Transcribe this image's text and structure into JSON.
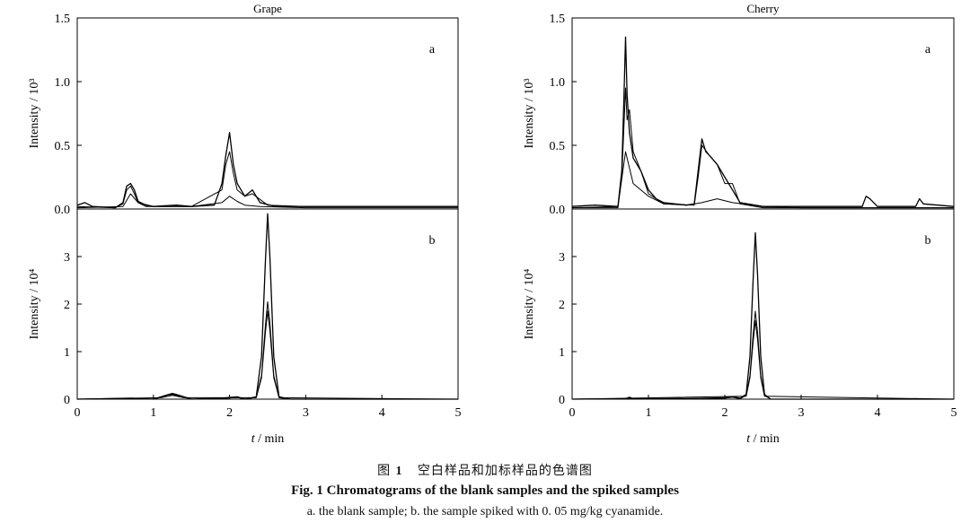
{
  "chart_data": [
    {
      "type": "line",
      "title": "Grape",
      "panels": [
        {
          "label": "a",
          "ylabel": "Intensity / 10³",
          "ylim": [
            0,
            1.5
          ],
          "yticks": [
            "0.0",
            "0.5",
            "1.0",
            "1.5"
          ],
          "xlim": [
            0,
            5
          ],
          "series": [
            {
              "x": [
                0,
                0.1,
                0.2,
                0.5,
                0.6,
                0.65,
                0.7,
                0.75,
                0.8,
                0.9,
                1.0,
                1.3,
                1.5,
                1.8,
                1.9,
                1.95,
                2.0,
                2.05,
                2.1,
                2.2,
                2.3,
                2.4,
                2.6,
                3.0,
                4.0,
                5.0
              ],
              "y": [
                0.03,
                0.05,
                0.02,
                0.01,
                0.05,
                0.18,
                0.2,
                0.15,
                0.06,
                0.03,
                0.02,
                0.03,
                0.02,
                0.03,
                0.2,
                0.42,
                0.6,
                0.35,
                0.2,
                0.1,
                0.15,
                0.05,
                0.02,
                0.02,
                0.02,
                0.02
              ]
            },
            {
              "x": [
                0,
                0.5,
                0.6,
                0.65,
                0.7,
                0.75,
                0.8,
                0.9,
                1.0,
                1.5,
                1.9,
                1.95,
                2.0,
                2.05,
                2.1,
                2.2,
                2.3,
                2.5,
                3.0,
                4.0,
                5.0
              ],
              "y": [
                0.02,
                0.01,
                0.04,
                0.15,
                0.18,
                0.12,
                0.05,
                0.02,
                0.02,
                0.02,
                0.15,
                0.35,
                0.45,
                0.28,
                0.15,
                0.1,
                0.12,
                0.03,
                0.02,
                0.02,
                0.02
              ]
            },
            {
              "x": [
                0,
                0.6,
                0.7,
                0.8,
                1.0,
                1.5,
                1.9,
                2.0,
                2.1,
                2.2,
                2.4,
                3.0,
                5.0
              ],
              "y": [
                0.01,
                0.02,
                0.12,
                0.05,
                0.02,
                0.02,
                0.05,
                0.1,
                0.06,
                0.03,
                0.02,
                0.01,
                0.01
              ]
            }
          ]
        },
        {
          "label": "b",
          "ylabel": "Intensity / 10⁴",
          "ylim": [
            0,
            4
          ],
          "yticks": [
            "0",
            "1",
            "2",
            "3"
          ],
          "xlim": [
            0,
            5
          ],
          "xticks": [
            "0",
            "1",
            "2",
            "3",
            "4",
            "5"
          ],
          "xlabel": "t / min",
          "series": [
            {
              "x": [
                0,
                0.7,
                1.0,
                1.1,
                1.2,
                1.25,
                1.3,
                1.4,
                1.5,
                1.85,
                1.9,
                2.1,
                2.2,
                2.35,
                2.42,
                2.47,
                2.5,
                2.53,
                2.58,
                2.65,
                2.8,
                5.0
              ],
              "y": [
                0,
                0.02,
                0,
                0.05,
                0.1,
                0.12,
                0.1,
                0.05,
                0,
                0.02,
                0.02,
                0.05,
                0,
                0.05,
                0.9,
                2.9,
                3.9,
                3.0,
                0.9,
                0.05,
                0,
                0
              ]
            },
            {
              "x": [
                0,
                0.7,
                1.0,
                1.1,
                1.2,
                1.25,
                1.3,
                1.4,
                1.5,
                1.9,
                2.1,
                2.2,
                2.35,
                2.42,
                2.47,
                2.5,
                2.53,
                2.58,
                2.65,
                2.8,
                5.0
              ],
              "y": [
                0,
                0.01,
                0,
                0.04,
                0.09,
                0.1,
                0.08,
                0.04,
                0,
                0.01,
                0.04,
                0,
                0.04,
                0.5,
                1.55,
                2.05,
                1.6,
                0.5,
                0.03,
                0,
                0
              ]
            },
            {
              "x": [
                0,
                1.1,
                1.25,
                1.4,
                2.35,
                2.42,
                2.47,
                2.5,
                2.53,
                2.58,
                2.65,
                5.0
              ],
              "y": [
                0,
                0.03,
                0.08,
                0.03,
                0.03,
                0.45,
                1.4,
                1.85,
                1.45,
                0.45,
                0.03,
                0
              ]
            }
          ]
        }
      ]
    },
    {
      "type": "line",
      "title": "Cherry",
      "panels": [
        {
          "label": "a",
          "ylabel": "Intensity / 10³",
          "ylim": [
            0,
            1.5
          ],
          "yticks": [
            "0.0",
            "0.5",
            "1.0",
            "1.5"
          ],
          "xlim": [
            0,
            5
          ],
          "series": [
            {
              "x": [
                0,
                0.3,
                0.6,
                0.65,
                0.68,
                0.7,
                0.72,
                0.75,
                0.8,
                0.9,
                1.0,
                1.1,
                1.2,
                1.5,
                1.6,
                1.65,
                1.7,
                1.75,
                1.8,
                1.9,
                2.0,
                2.1,
                2.2,
                2.5,
                3.0,
                3.8,
                3.85,
                3.9,
                4.0,
                4.5,
                4.55,
                4.6,
                5.0
              ],
              "y": [
                0.02,
                0.03,
                0.02,
                0.3,
                0.9,
                1.35,
                0.9,
                0.6,
                0.4,
                0.3,
                0.15,
                0.08,
                0.05,
                0.03,
                0.04,
                0.3,
                0.55,
                0.45,
                0.42,
                0.35,
                0.25,
                0.15,
                0.05,
                0.02,
                0.02,
                0.02,
                0.1,
                0.08,
                0.02,
                0.02,
                0.08,
                0.04,
                0.02
              ]
            },
            {
              "x": [
                0,
                0.6,
                0.65,
                0.7,
                0.72,
                0.75,
                0.8,
                0.9,
                1.0,
                1.2,
                1.6,
                1.65,
                1.7,
                1.8,
                1.9,
                2.0,
                2.1,
                2.2,
                2.5,
                5.0
              ],
              "y": [
                0.01,
                0.01,
                0.25,
                0.95,
                0.7,
                0.78,
                0.45,
                0.3,
                0.12,
                0.04,
                0.03,
                0.25,
                0.5,
                0.42,
                0.35,
                0.2,
                0.2,
                0.04,
                0.01,
                0.01
              ]
            },
            {
              "x": [
                0,
                0.6,
                0.7,
                0.8,
                1.0,
                1.2,
                1.5,
                1.7,
                1.9,
                2.1,
                2.5,
                3.0,
                5.0
              ],
              "y": [
                0.01,
                0.02,
                0.45,
                0.2,
                0.1,
                0.04,
                0.03,
                0.05,
                0.08,
                0.05,
                0.02,
                0.01,
                0.01
              ]
            }
          ]
        },
        {
          "label": "b",
          "ylabel": "Intensity / 10⁴",
          "ylim": [
            0,
            4
          ],
          "yticks": [
            "0",
            "1",
            "2",
            "3"
          ],
          "xlim": [
            0,
            5
          ],
          "xticks": [
            "0",
            "1",
            "2",
            "3",
            "4",
            "5"
          ],
          "xlabel": "t / min",
          "series": [
            {
              "x": [
                0,
                0.7,
                0.75,
                0.8,
                1.5,
                2.0,
                2.1,
                2.2,
                2.28,
                2.33,
                2.37,
                2.4,
                2.43,
                2.47,
                2.52,
                2.6,
                5.0
              ],
              "y": [
                0,
                0.01,
                0.04,
                0.01,
                0.01,
                0.03,
                0.05,
                0.02,
                0.1,
                0.9,
                2.5,
                3.5,
                2.6,
                0.9,
                0.1,
                0,
                0
              ]
            },
            {
              "x": [
                0,
                2.0,
                2.1,
                2.2,
                2.28,
                2.33,
                2.37,
                2.4,
                2.43,
                2.47,
                2.52,
                2.6,
                5.0
              ],
              "y": [
                0,
                0.02,
                0.04,
                0.01,
                0.08,
                0.5,
                1.35,
                1.85,
                1.4,
                0.5,
                0.08,
                0,
                0
              ]
            },
            {
              "x": [
                0,
                2.28,
                2.33,
                2.37,
                2.4,
                2.43,
                2.47,
                2.52,
                5.0
              ],
              "y": [
                0,
                0.06,
                0.45,
                1.2,
                1.65,
                1.25,
                0.45,
                0.06,
                0
              ]
            }
          ]
        }
      ]
    }
  ],
  "caption": {
    "cn_prefix": "图",
    "fig_num": "1",
    "cn_text": "空白样品和加标样品的色谱图",
    "en": "Fig. 1   Chromatograms of the blank samples and the spiked samples",
    "note": "a. the blank sample; b. the sample spiked with 0. 05 mg/kg cyanamide."
  }
}
